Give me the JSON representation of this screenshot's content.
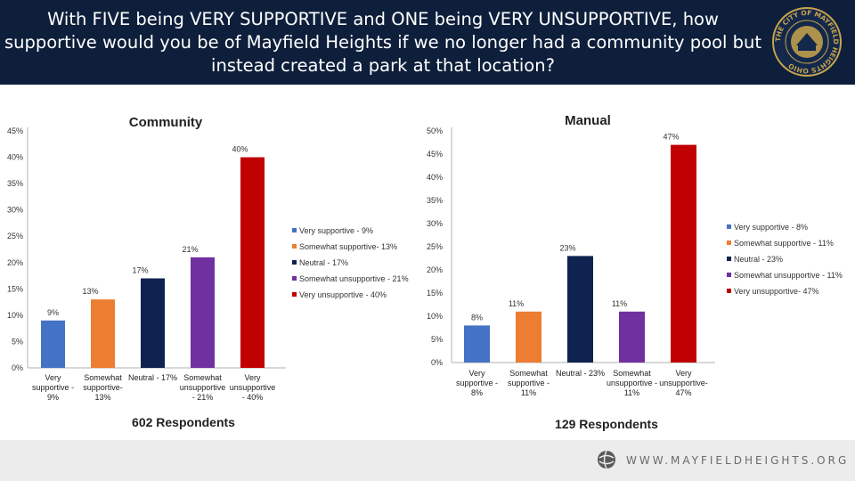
{
  "header": {
    "title_lines": [
      "With FIVE being VERY SUPPORTIVE and ONE being VERY UNSUPPORTIVE, how",
      "supportive would you be of Mayfield Heights if we no longer had a community pool but",
      "instead created a park at that location?"
    ],
    "seal_text": "THE CITY OF MAYFIELD HEIGHTS OHIO"
  },
  "footer": {
    "website": "WWW.MAYFIELDHEIGHTS.ORG"
  },
  "colors": [
    "#4472c4",
    "#ed7d31",
    "#0e2350",
    "#7030a0",
    "#c00000"
  ],
  "chart_data": [
    {
      "type": "bar",
      "title": "Community",
      "respondents": "602 Respondents",
      "ylim": [
        0,
        45
      ],
      "yticks": [
        0,
        5,
        10,
        15,
        20,
        25,
        30,
        35,
        40,
        45
      ],
      "tick_labels": [
        "0%",
        "5%",
        "10%",
        "15%",
        "20%",
        "25%",
        "30%",
        "35%",
        "40%",
        "45%"
      ],
      "values": [
        9,
        13,
        17,
        21,
        40
      ],
      "data_labels": [
        "9%",
        "13%",
        "17%",
        "21%",
        "40%"
      ],
      "category_labels": [
        [
          "Very",
          "supportive -",
          "9%"
        ],
        [
          "Somewhat",
          "supportive-",
          "13%"
        ],
        [
          "Neutral - 17%"
        ],
        [
          "Somewhat",
          "unsupportive",
          "- 21%"
        ],
        [
          "Very",
          "unsupportive",
          "- 40%"
        ]
      ],
      "legend": [
        "Very supportive - 9%",
        "Somewhat supportive- 13%",
        "Neutral - 17%",
        "Somewhat unsupportive - 21%",
        "Very unsupportive - 40%"
      ],
      "legend_position": "right"
    },
    {
      "type": "bar",
      "title": "Manual",
      "respondents": "129 Respondents",
      "ylim": [
        0,
        50
      ],
      "yticks": [
        0,
        5,
        10,
        15,
        20,
        25,
        30,
        35,
        40,
        45,
        50
      ],
      "tick_labels": [
        "0%",
        "5%",
        "10%",
        "15%",
        "20%",
        "25%",
        "30%",
        "35%",
        "40%",
        "45%",
        "50%"
      ],
      "values": [
        8,
        11,
        23,
        11,
        47
      ],
      "data_labels": [
        "8%",
        "11%",
        "23%",
        "11%",
        "47%"
      ],
      "category_labels": [
        [
          "Very",
          "supportive -",
          "8%"
        ],
        [
          "Somewhat",
          "supportive -",
          "11%"
        ],
        [
          "Neutral - 23%"
        ],
        [
          "Somewhat",
          "unsupportive -",
          "11%"
        ],
        [
          "Very",
          "unsupportive-",
          "47%"
        ]
      ],
      "legend": [
        "Very supportive - 8%",
        "Somewhat supportive - 11%",
        "Neutral - 23%",
        "Somewhat unsupportive - 11%",
        "Very unsupportive- 47%"
      ],
      "legend_position": "right"
    }
  ]
}
